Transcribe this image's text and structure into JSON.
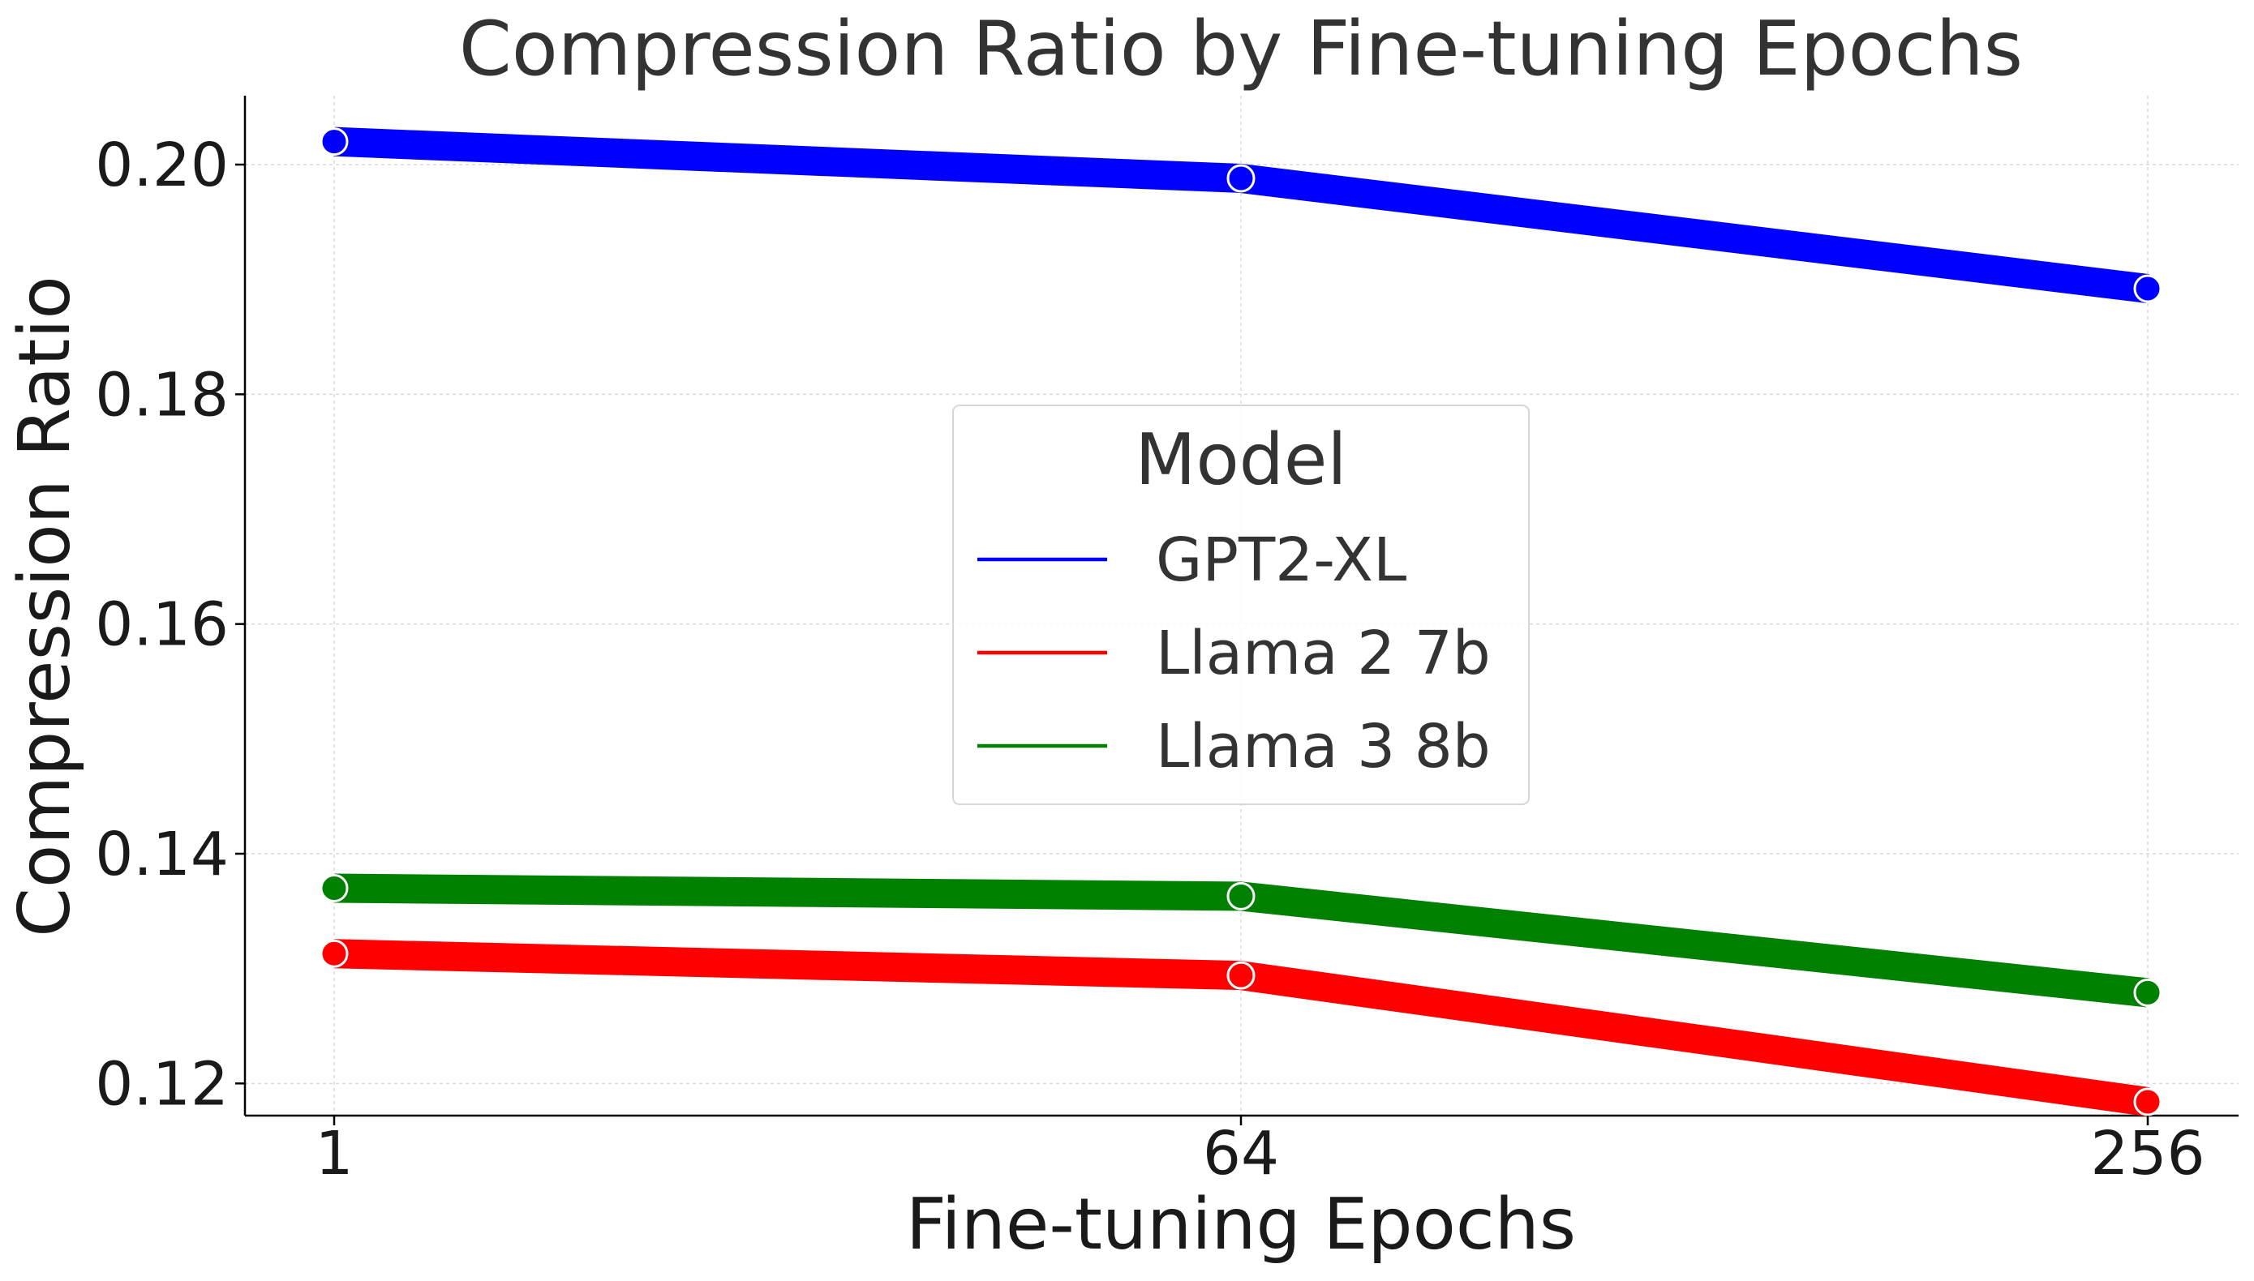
{
  "chart_data": {
    "type": "line",
    "title": "Compression Ratio by Fine-tuning Epochs",
    "xlabel": "Fine-tuning Epochs",
    "ylabel": "Compression Ratio",
    "x": [
      "1",
      "64",
      "256"
    ],
    "ylim": [
      0.1172,
      0.206
    ],
    "yticks": [
      "0.12",
      "0.14",
      "0.16",
      "0.18",
      "0.20"
    ],
    "yticks_values": [
      0.12,
      0.14,
      0.16,
      0.18,
      0.2
    ],
    "grid": true,
    "legend": {
      "title": "Model",
      "placement": "center"
    },
    "series": [
      {
        "name": "GPT2-XL",
        "color": "#0000ff",
        "values": [
          0.202,
          0.1988,
          0.1892
        ]
      },
      {
        "name": "Llama 2 7b",
        "color": "#ff0000",
        "values": [
          0.1313,
          0.1294,
          0.1184
        ]
      },
      {
        "name": "Llama 3 8b",
        "color": "#008000",
        "values": [
          0.137,
          0.1363,
          0.1279
        ]
      }
    ]
  }
}
